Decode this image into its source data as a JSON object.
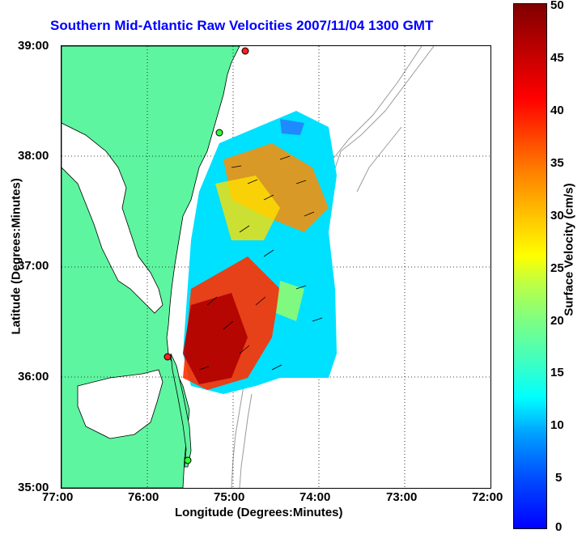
{
  "title": "Southern Mid-Atlantic Raw Velocities 2007/11/04 1300 GMT",
  "x_axis": {
    "label": "Longitude (Degrees:Minutes)",
    "ticks": [
      "77:00",
      "76:00",
      "75:00",
      "74:00",
      "73:00",
      "72:00"
    ]
  },
  "y_axis": {
    "label": "Latitude (Degrees:Minutes)",
    "ticks": [
      "39:00",
      "38:00",
      "37:00",
      "36:00",
      "35:00"
    ]
  },
  "colorbar": {
    "label": "Surface Velocity (cm/s)",
    "ticks": [
      "50",
      "45",
      "40",
      "35",
      "30",
      "25",
      "20",
      "15",
      "10",
      "5",
      "0"
    ]
  },
  "colors": {
    "land": "#5ef5a0",
    "title": "#0000ff",
    "vectors": "#000000",
    "bathymetry": "#9a9a9a"
  }
}
